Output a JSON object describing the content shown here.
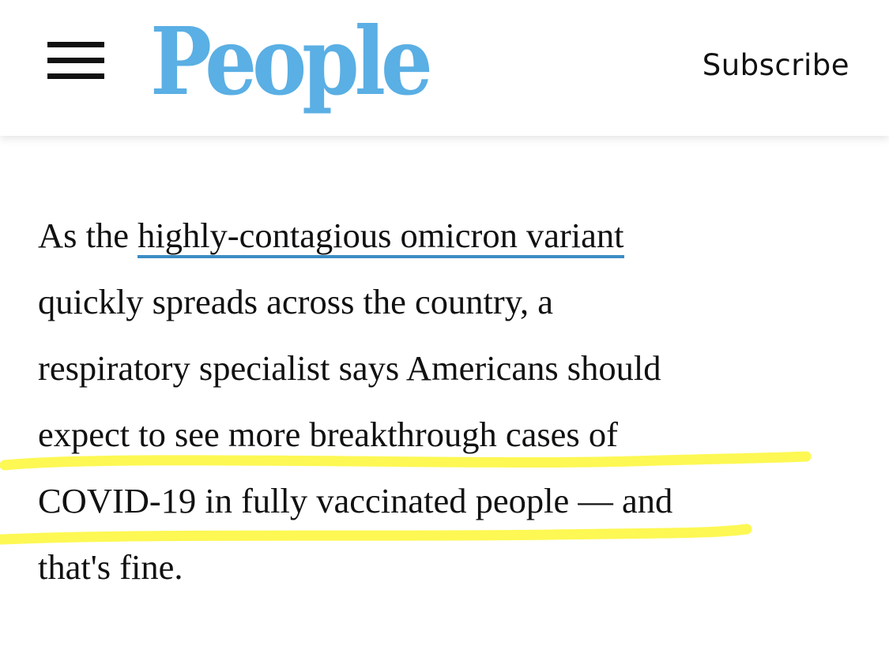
{
  "header": {
    "logo_text": "People",
    "subscribe_label": "Subscribe",
    "menu_icon": "hamburger-menu-icon"
  },
  "article": {
    "line_1_prefix": "As the ",
    "link_text": "highly-contagious omicron variant",
    "line_2": "quickly spreads across the country, a",
    "line_3": "respiratory specialist says Americans should",
    "line_4": "expect to see more breakthrough cases of",
    "line_5": "COVID-19 in fully vaccinated people — and",
    "line_6": "that's fine."
  },
  "colors": {
    "logo": "#5aafe4",
    "link_underline": "#3c8cc4",
    "highlighter": "#fdf84a",
    "text": "#111111"
  }
}
